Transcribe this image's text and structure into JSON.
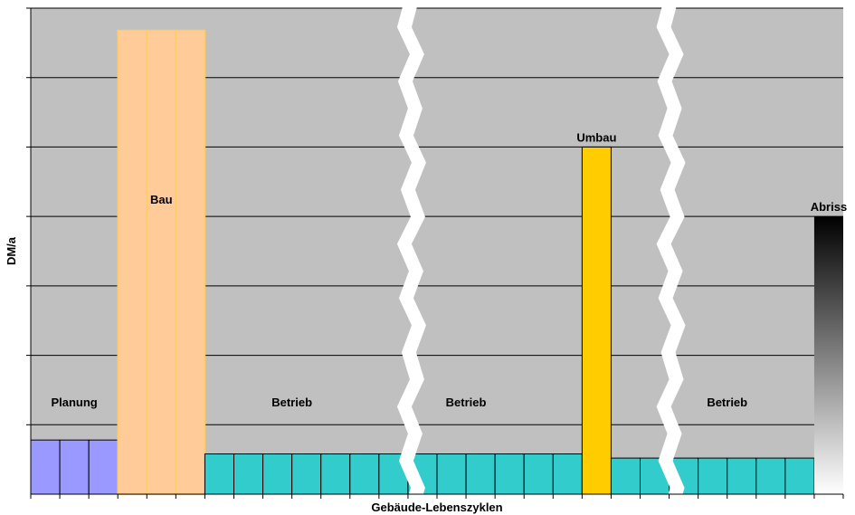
{
  "chart_data": {
    "type": "bar",
    "title": "",
    "xlabel": "Gebäude-Lebenszyklen",
    "ylabel": "DM/a",
    "ylim": [
      0,
      7
    ],
    "grid": true,
    "y_ticks": [
      1,
      2,
      3,
      4,
      5,
      6,
      7
    ],
    "x_ticks": 28,
    "segments": [
      {
        "key": "planung",
        "name": "Planung",
        "start": 0,
        "end": 3,
        "value": 0.78,
        "color": "#9999ff",
        "label_pos": "inside"
      },
      {
        "key": "bau",
        "name": "Bau",
        "start": 3,
        "end": 6,
        "value": 6.68,
        "color": "#ffcc99",
        "label_pos": "inside"
      },
      {
        "key": "betrieb1",
        "name": "Betrieb",
        "start": 6,
        "end": 19,
        "value": 0.58,
        "color": "#33cccc",
        "label_pos": "inside"
      },
      {
        "key": "umbau",
        "name": "Umbau",
        "start": 19,
        "end": 20,
        "value": 5.0,
        "color": "#ffcc00",
        "label_pos": "above"
      },
      {
        "key": "betrieb2",
        "name": "Betrieb",
        "start": 20,
        "end": 27,
        "value": 0.52,
        "color": "#33cccc",
        "label_pos": "inside"
      },
      {
        "key": "abriss",
        "name": "Abriss",
        "start": 27,
        "end": 28,
        "value": 4.0,
        "color": "gradient",
        "label_pos": "above"
      }
    ],
    "extra_labels": [
      {
        "key": "betrieb_mid",
        "text": "Betrieb"
      }
    ],
    "breaks": 2,
    "plot_bg": "#c0c0c0"
  }
}
